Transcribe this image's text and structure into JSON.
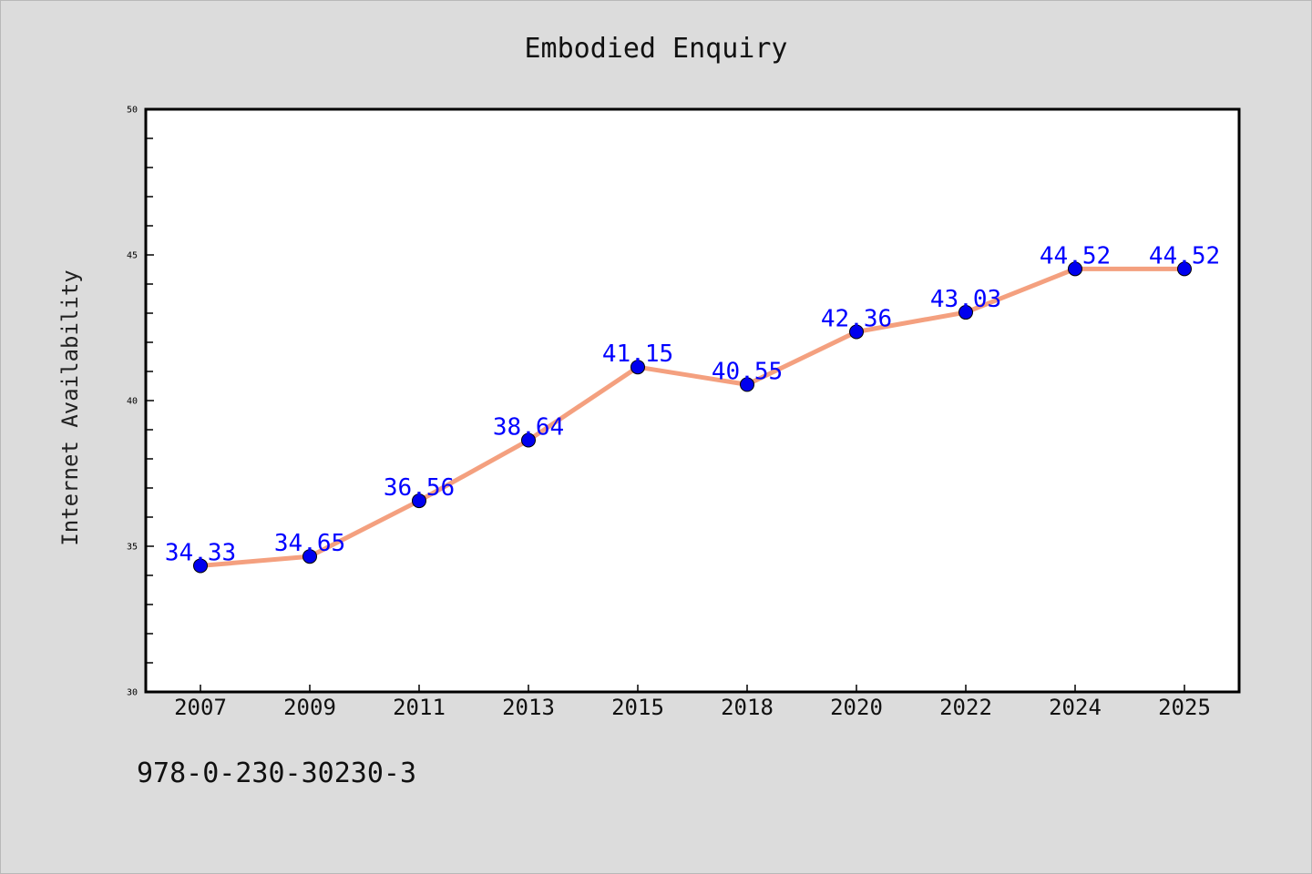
{
  "chart_data": {
    "type": "line",
    "title": "Embodied Enquiry",
    "xlabel": "",
    "ylabel": "Internet Availability",
    "categories": [
      "2007",
      "2009",
      "2011",
      "2013",
      "2015",
      "2018",
      "2020",
      "2022",
      "2024",
      "2025"
    ],
    "series": [
      {
        "values": [
          34.33,
          34.65,
          36.56,
          38.64,
          41.15,
          40.55,
          42.36,
          43.03,
          44.52,
          44.52
        ]
      }
    ],
    "data_labels": [
      "34.33",
      "34.65",
      "36.56",
      "38.64",
      "41.15",
      "40.55",
      "42.36",
      "43.03",
      "44.52",
      "44.52"
    ],
    "ylim": [
      30,
      50
    ],
    "yticks": [
      "30",
      "35",
      "40",
      "45",
      "50"
    ],
    "grid": false,
    "colors": {
      "line": "#f4a07f",
      "marker": "#0000ee",
      "label": "#0000ff",
      "background": "#dcdcdc",
      "plot_background": "#ffffff"
    }
  },
  "footer": {
    "isbn": "978-0-230-30230-3"
  }
}
